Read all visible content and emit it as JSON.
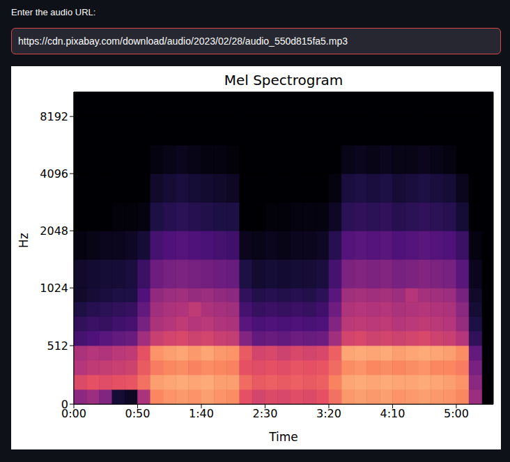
{
  "page": {
    "input_label": "Enter the audio URL:",
    "input_value": "https://cdn.pixabay.com/download/audio/2023/02/28/audio_550d815fa5.mp3"
  },
  "chart_data": {
    "type": "heatmap",
    "title": "Mel Spectrogram",
    "x_label": "Time",
    "y_label": "Hz",
    "grid": false,
    "xlim": [
      0,
      329
    ],
    "xticks": [
      {
        "value": 0,
        "label": "0:00"
      },
      {
        "value": 50,
        "label": "0:50"
      },
      {
        "value": 100,
        "label": "1:40"
      },
      {
        "value": 150,
        "label": "2:30"
      },
      {
        "value": 200,
        "label": "3:20"
      },
      {
        "value": 250,
        "label": "4:10"
      },
      {
        "value": 300,
        "label": "5:00"
      }
    ],
    "ylim": [
      0,
      11025
    ],
    "yticks": [
      0,
      512,
      1024,
      2048,
      4096,
      8192
    ],
    "color_range": [
      -80,
      0
    ],
    "x_edges": [
      0,
      10,
      20,
      30,
      40,
      50,
      60,
      70,
      80,
      90,
      100,
      110,
      120,
      130,
      140,
      150,
      160,
      170,
      180,
      190,
      200,
      210,
      220,
      230,
      240,
      250,
      260,
      270,
      280,
      290,
      300,
      310,
      320
    ],
    "y_edges": [
      0,
      128,
      256,
      384,
      512,
      640,
      768,
      896,
      1024,
      1448,
      2048,
      2896,
      4096,
      5793,
      8192,
      11025
    ],
    "cells": [
      [
        -48,
        -32,
        -40,
        -42,
        -62,
        -66,
        -70,
        -74,
        -74,
        -78,
        -80,
        -80,
        -80,
        -80,
        -80
      ],
      [
        -45,
        -30,
        -38,
        -40,
        -60,
        -64,
        -68,
        -72,
        -73,
        -77,
        -80,
        -80,
        -80,
        -80,
        -80
      ],
      [
        -50,
        -31,
        -37,
        -41,
        -58,
        -65,
        -67,
        -71,
        -72,
        -76,
        -80,
        -80,
        -80,
        -80,
        -80
      ],
      [
        -72,
        -30,
        -36,
        -39,
        -56,
        -63,
        -66,
        -70,
        -72,
        -76,
        -79,
        -80,
        -80,
        -80,
        -80
      ],
      [
        -75,
        -29,
        -35,
        -38,
        -55,
        -62,
        -65,
        -70,
        -71,
        -75,
        -79,
        -80,
        -80,
        -80,
        -80
      ],
      [
        -42,
        -24,
        -28,
        -30,
        -44,
        -52,
        -56,
        -60,
        -64,
        -72,
        -78,
        -80,
        -80,
        -80,
        -80
      ],
      [
        -20,
        -16,
        -22,
        -18,
        -36,
        -42,
        -44,
        -47,
        -54,
        -62,
        -70,
        -74,
        -78,
        -80,
        -80
      ],
      [
        -18,
        -15,
        -20,
        -16,
        -34,
        -40,
        -42,
        -45,
        -52,
        -60,
        -68,
        -72,
        -77,
        -80,
        -80
      ],
      [
        -17,
        -14,
        -19,
        -15,
        -33,
        -38,
        -41,
        -44,
        -51,
        -59,
        -67,
        -71,
        -76,
        -80,
        -80
      ],
      [
        -18,
        -15,
        -21,
        -17,
        -35,
        -40,
        -38,
        -46,
        -52,
        -60,
        -68,
        -72,
        -77,
        -80,
        -80
      ],
      [
        -16,
        -14,
        -19,
        -15,
        -34,
        -39,
        -42,
        -45,
        -53,
        -61,
        -69,
        -73,
        -78,
        -80,
        -80
      ],
      [
        -18,
        -16,
        -20,
        -17,
        -36,
        -41,
        -43,
        -47,
        -54,
        -62,
        -70,
        -74,
        -78,
        -80,
        -80
      ],
      [
        -19,
        -16,
        -21,
        -18,
        -37,
        -42,
        -44,
        -48,
        -55,
        -63,
        -70,
        -75,
        -79,
        -80,
        -80
      ],
      [
        -30,
        -25,
        -30,
        -28,
        -50,
        -58,
        -62,
        -66,
        -70,
        -76,
        -80,
        -80,
        -80,
        -80,
        -80
      ],
      [
        -34,
        -28,
        -31,
        -34,
        -56,
        -61,
        -65,
        -69,
        -73,
        -77,
        -80,
        -80,
        -80,
        -80,
        -80
      ],
      [
        -32,
        -27,
        -30,
        -33,
        -55,
        -60,
        -64,
        -68,
        -72,
        -76,
        -79,
        -80,
        -80,
        -80,
        -80
      ],
      [
        -33,
        -28,
        -31,
        -35,
        -56,
        -61,
        -65,
        -69,
        -73,
        -77,
        -79,
        -80,
        -80,
        -80,
        -80
      ],
      [
        -31,
        -27,
        -29,
        -33,
        -54,
        -60,
        -64,
        -68,
        -72,
        -76,
        -78,
        -80,
        -80,
        -80,
        -80
      ],
      [
        -32,
        -28,
        -30,
        -34,
        -55,
        -61,
        -65,
        -69,
        -72,
        -76,
        -78,
        -80,
        -80,
        -80,
        -80
      ],
      [
        -30,
        -27,
        -29,
        -33,
        -54,
        -60,
        -63,
        -67,
        -71,
        -75,
        -78,
        -80,
        -80,
        -80,
        -80
      ],
      [
        -24,
        -21,
        -25,
        -27,
        -44,
        -50,
        -54,
        -58,
        -62,
        -68,
        -75,
        -78,
        -80,
        -80,
        -80
      ],
      [
        -17,
        -15,
        -19,
        -15,
        -34,
        -39,
        -41,
        -44,
        -51,
        -59,
        -67,
        -71,
        -77,
        -80,
        -80
      ],
      [
        -16,
        -14,
        -18,
        -14,
        -33,
        -38,
        -40,
        -43,
        -50,
        -58,
        -66,
        -70,
        -76,
        -80,
        -80
      ],
      [
        -17,
        -15,
        -20,
        -15,
        -35,
        -39,
        -41,
        -44,
        -51,
        -59,
        -67,
        -71,
        -77,
        -80,
        -80
      ],
      [
        -16,
        -14,
        -19,
        -14,
        -34,
        -38,
        -40,
        -43,
        -50,
        -58,
        -66,
        -70,
        -76,
        -80,
        -80
      ],
      [
        -18,
        -15,
        -20,
        -16,
        -35,
        -40,
        -42,
        -45,
        -52,
        -60,
        -68,
        -72,
        -77,
        -80,
        -80
      ],
      [
        -17,
        -15,
        -19,
        -15,
        -34,
        -39,
        -41,
        -40,
        -51,
        -59,
        -67,
        -71,
        -77,
        -80,
        -80
      ],
      [
        -16,
        -14,
        -18,
        -14,
        -33,
        -38,
        -40,
        -43,
        -50,
        -58,
        -66,
        -70,
        -76,
        -80,
        -80
      ],
      [
        -17,
        -15,
        -20,
        -15,
        -35,
        -39,
        -41,
        -44,
        -51,
        -59,
        -67,
        -71,
        -77,
        -80,
        -80
      ],
      [
        -18,
        -16,
        -20,
        -16,
        -36,
        -40,
        -42,
        -45,
        -52,
        -60,
        -68,
        -72,
        -78,
        -80,
        -80
      ],
      [
        -20,
        -18,
        -22,
        -19,
        -40,
        -46,
        -48,
        -52,
        -58,
        -64,
        -72,
        -76,
        -80,
        -80,
        -80
      ],
      [
        -45,
        -48,
        -52,
        -56,
        -66,
        -70,
        -72,
        -74,
        -76,
        -78,
        -80,
        -80,
        -80,
        -80,
        -80
      ]
    ]
  }
}
